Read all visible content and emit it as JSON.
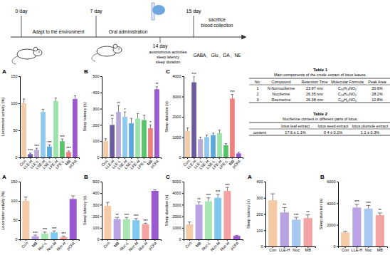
{
  "diagram": {
    "days": [
      "0 day",
      "7 day",
      "14 day",
      "15 day"
    ],
    "phases": [
      "Adapt to the environment",
      "Oral administration"
    ],
    "tests": [
      "autonomous activities",
      "sleep latency",
      "sleep duration"
    ],
    "sacrifice": [
      "sacrifice",
      "blood collection"
    ],
    "assays": "GABA、Glu、DA、NE"
  },
  "tables": [
    {
      "title": "Table 1",
      "caption": "Main components of the crude extract of lotus leaves.",
      "header": [
        "No.",
        "Compound",
        "Retention Time",
        "Molecular Formula",
        "Peak Area"
      ],
      "rows": [
        [
          "1",
          "N-Nornuciferine",
          "23.97 min",
          "C₁₈H₁₉NO₂",
          "20.6%"
        ],
        [
          "2",
          "Nuciferine",
          "26.35 min",
          "C₁₉H₂₁NO₂",
          "28.2%"
        ],
        [
          "3",
          "Roemerine",
          "26.38 min",
          "C₁₈H₁₇NO₂",
          "12.8%"
        ]
      ]
    },
    {
      "title": "Table 2",
      "caption": "Nuciferine content in different parts of lotus.",
      "header": [
        null,
        "lotus leaf extract",
        "lotus seed extract",
        "lotus plumule extract"
      ],
      "rows": [
        [
          "content",
          "17.6 ± 1.1%",
          "0.4 ± 0.1%",
          "1.1 ± 0.3%"
        ]
      ]
    }
  ],
  "chart_data": [
    {
      "type": "bar",
      "title": "A",
      "ylabel": "Locomotor activity (%)",
      "categories": [
        "Con",
        "LLE-H",
        "LLE-L",
        "LSE-H",
        "LSE-L",
        "LPE-H",
        "LPE-L",
        "MB",
        "pCPA"
      ],
      "values": [
        100,
        6,
        14,
        84,
        20,
        104,
        30,
        10,
        108
      ],
      "errors": [
        8,
        2,
        3,
        5,
        3,
        6,
        4,
        2,
        6
      ],
      "annotations": [
        null,
        "***",
        "***",
        null,
        "***",
        null,
        "***",
        "***",
        null
      ],
      "colors": [
        "#f5cba7",
        "#6c5b9e",
        "#b8a9d9",
        "#8ec9ef",
        "#5aa8dc",
        "#9be3a8",
        "#57c46a",
        "#f08080",
        "#9b59d0"
      ],
      "ylim": [
        0,
        150
      ],
      "yticks": [
        0,
        50,
        100,
        150
      ]
    },
    {
      "type": "bar",
      "title": "B",
      "ylabel": "Sleep latency (s)",
      "categories": [
        "Con",
        "LLE-H",
        "LLE-L",
        "LSE-H",
        "LSE-L",
        "LPE-H",
        "LPE-L",
        "MB",
        "pCPA"
      ],
      "values": [
        100,
        200,
        280,
        250,
        210,
        240,
        230,
        180,
        420
      ],
      "errors": [
        15,
        40,
        40,
        30,
        30,
        30,
        30,
        20,
        15
      ],
      "annotations": [
        null,
        "**",
        "**",
        "*",
        null,
        null,
        null,
        "*",
        "**"
      ],
      "colors": [
        "#f5cba7",
        "#6c5b9e",
        "#b8a9d9",
        "#8ec9ef",
        "#5aa8dc",
        "#9be3a8",
        "#57c46a",
        "#f08080",
        "#9b59d0"
      ],
      "ylim": [
        0,
        500
      ],
      "yticks": [
        0,
        100,
        200,
        300,
        400,
        500
      ]
    },
    {
      "type": "bar",
      "title": "C",
      "ylabel": "Sleep duration (s)",
      "categories": [
        "Con",
        "LLE-H",
        "LLE-L",
        "LSE-H",
        "LSE-L",
        "LPE-H",
        "LPE-L",
        "MB",
        "pCPA"
      ],
      "values": [
        1300,
        3700,
        900,
        1000,
        1100,
        1200,
        600,
        2900,
        200
      ],
      "errors": [
        150,
        300,
        100,
        100,
        100,
        150,
        80,
        200,
        50
      ],
      "annotations": [
        null,
        "***",
        null,
        null,
        null,
        null,
        null,
        "***",
        null
      ],
      "colors": [
        "#f5cba7",
        "#6c5b9e",
        "#b8a9d9",
        "#8ec9ef",
        "#5aa8dc",
        "#9be3a8",
        "#57c46a",
        "#f08080",
        "#9b59d0"
      ],
      "ylim": [
        0,
        4000
      ],
      "yticks": [
        0,
        1000,
        2000,
        3000,
        4000
      ]
    },
    {
      "type": "bar",
      "title": "A",
      "ylabel": "Locomotor activity (%)",
      "categories": [
        "Con",
        "MB",
        "Nuc-L",
        "Nuc-M",
        "Nuc-H",
        "pCPA"
      ],
      "values": [
        100,
        8,
        15,
        18,
        6,
        105
      ],
      "errors": [
        10,
        3,
        4,
        4,
        2,
        8
      ],
      "annotations": [
        null,
        "***",
        "***",
        "***",
        "***",
        null
      ],
      "colors": [
        "#f5cba7",
        "#b9a3e3",
        "#a8e6b4",
        "#7fc8f0",
        "#f4a3a3",
        "#9b59d0"
      ],
      "ylim": [
        0,
        150
      ],
      "yticks": [
        0,
        50,
        100,
        150
      ]
    },
    {
      "type": "bar",
      "title": "B",
      "ylabel": "Sleep latency (s)",
      "categories": [
        "Con",
        "MB",
        "Nuc-L",
        "Nuc-M",
        "Nuc-H",
        "pCPA"
      ],
      "values": [
        290,
        175,
        175,
        165,
        130,
        420
      ],
      "errors": [
        30,
        15,
        15,
        15,
        10,
        10
      ],
      "annotations": [
        null,
        "**",
        "***",
        "***",
        "***",
        null
      ],
      "colors": [
        "#f5cba7",
        "#b9a3e3",
        "#a8e6b4",
        "#7fc8f0",
        "#f4a3a3",
        "#9b59d0"
      ],
      "ylim": [
        0,
        500
      ],
      "yticks": [
        0,
        100,
        200,
        300,
        400,
        500
      ]
    },
    {
      "type": "bar",
      "title": "C",
      "ylabel": "Sleep duration (s)",
      "categories": [
        "Con",
        "MB",
        "Nuc-L",
        "Nuc-M",
        "Nuc-H",
        "pCPA"
      ],
      "values": [
        1300,
        3000,
        3300,
        3600,
        4200,
        300
      ],
      "errors": [
        200,
        250,
        300,
        300,
        300,
        50
      ],
      "annotations": [
        null,
        "**",
        "***",
        "***",
        "***",
        null
      ],
      "colors": [
        "#f5cba7",
        "#b9a3e3",
        "#a8e6b4",
        "#7fc8f0",
        "#f4a3a3",
        "#9b59d0"
      ],
      "ylim": [
        0,
        5000
      ],
      "yticks": [
        0,
        1000,
        2000,
        3000,
        4000,
        5000
      ]
    },
    {
      "type": "bar",
      "title": "A",
      "ylabel": "Sleep latency (s)",
      "categories": [
        "Con",
        "LLE-H",
        "Nuc",
        "MB"
      ],
      "values": [
        285,
        210,
        165,
        175
      ],
      "errors": [
        40,
        30,
        15,
        20
      ],
      "annotations": [
        null,
        "**",
        "***",
        "**"
      ],
      "colors": [
        "#f5cba7",
        "#b9a3e3",
        "#a8c8f0",
        "#f4a3a3"
      ],
      "ylim": [
        0,
        400
      ],
      "yticks": [
        0,
        100,
        200,
        300,
        400
      ]
    },
    {
      "type": "bar",
      "title": "B",
      "ylabel": "Sleep duration (s)",
      "categories": [
        "Con",
        "LLE-H",
        "Nuc",
        "MB"
      ],
      "values": [
        1300,
        3600,
        3500,
        2900
      ],
      "errors": [
        100,
        300,
        300,
        200
      ],
      "annotations": [
        null,
        "***",
        "***",
        "**"
      ],
      "colors": [
        "#f5cba7",
        "#b9a3e3",
        "#a8c8f0",
        "#f4a3a3"
      ],
      "ylim": [
        0,
        6000
      ],
      "yticks": [
        0,
        2000,
        4000,
        6000
      ]
    }
  ]
}
